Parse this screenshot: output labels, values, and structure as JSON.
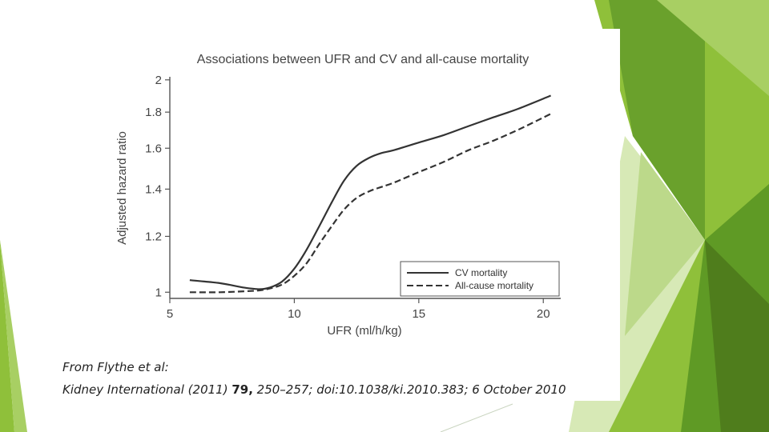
{
  "slide": {
    "accent_colors": [
      "#8fc03a",
      "#6aa12c",
      "#a8cf63",
      "#d7e9b6",
      "#4f7d1c"
    ]
  },
  "chart_data": {
    "type": "line",
    "title": "Associations between UFR and CV and all-cause mortality",
    "xlabel": "UFR (ml/h/kg)",
    "ylabel": "Adjusted hazard ratio",
    "xlim": [
      5,
      20.7
    ],
    "ylim": [
      0.98,
      2.02
    ],
    "y_scale": "log",
    "x_ticks": [
      "5",
      "10",
      "15",
      "20"
    ],
    "y_ticks": [
      "1",
      "1.2",
      "1.4",
      "1.6",
      "1.8",
      "2"
    ],
    "legend_position": "bottom-right",
    "series": [
      {
        "name": "CV mortality",
        "style": "solid",
        "x": [
          5.8,
          7,
          8,
          8.6,
          9,
          9.5,
          10,
          10.5,
          11,
          11.5,
          12,
          12.5,
          13,
          13.5,
          14,
          15,
          16,
          17,
          18,
          19,
          20.3
        ],
        "y": [
          1.04,
          1.03,
          1.015,
          1.01,
          1.015,
          1.035,
          1.08,
          1.15,
          1.24,
          1.34,
          1.44,
          1.51,
          1.55,
          1.575,
          1.59,
          1.63,
          1.67,
          1.72,
          1.77,
          1.82,
          1.9
        ]
      },
      {
        "name": "All-cause mortality",
        "style": "dashed",
        "x": [
          5.8,
          7,
          8,
          8.6,
          9,
          9.5,
          10,
          10.5,
          11,
          11.5,
          12,
          12.5,
          13,
          13.5,
          14,
          15,
          16,
          17,
          18,
          19,
          20.3
        ],
        "y": [
          1.0,
          1.0,
          1.003,
          1.006,
          1.012,
          1.025,
          1.055,
          1.1,
          1.17,
          1.24,
          1.31,
          1.36,
          1.39,
          1.41,
          1.43,
          1.48,
          1.53,
          1.59,
          1.64,
          1.7,
          1.79
        ]
      }
    ]
  },
  "citation": {
    "line1": "From Flythe et al:",
    "line2_pre": "Kidney International (2011) ",
    "line2_bold": "79,",
    "line2_post": " 250–257; doi:10.1038/ki.2010.383; 6 October 2010"
  }
}
